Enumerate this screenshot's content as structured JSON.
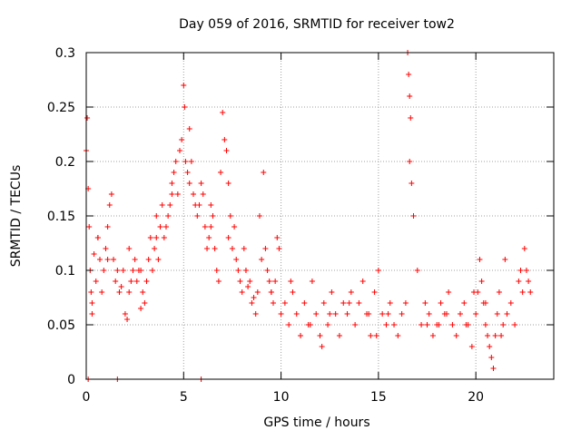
{
  "chart_data": {
    "type": "scatter",
    "title": "Day 059 of 2016, SRMTID for receiver tow2",
    "xlabel": "GPS time / hours",
    "ylabel": "SRMTID / TECUs",
    "xlim": [
      0,
      24
    ],
    "ylim": [
      0,
      0.3
    ],
    "xticks": [
      0,
      5,
      10,
      15,
      20
    ],
    "xtick_labels": [
      "0",
      "5",
      "10",
      "15",
      "20"
    ],
    "yticks": [
      0,
      0.05,
      0.1,
      0.15,
      0.2,
      0.25,
      0.3
    ],
    "ytick_labels": [
      "0",
      "0.05",
      "0.1",
      "0.15",
      "0.2",
      "0.25",
      "0.3"
    ],
    "grid": true,
    "marker": "plus",
    "color": "#ff0000",
    "series": [
      {
        "name": "SRMTID",
        "x": [
          0.0,
          0.05,
          0.1,
          0.15,
          0.2,
          0.25,
          0.3,
          0.4,
          0.5,
          0.6,
          0.7,
          0.8,
          0.9,
          1.0,
          1.1,
          1.2,
          1.3,
          1.4,
          1.5,
          1.6,
          1.7,
          1.8,
          1.9,
          2.0,
          2.1,
          2.2,
          2.3,
          2.4,
          2.5,
          2.6,
          2.7,
          2.8,
          2.9,
          3.0,
          3.1,
          3.2,
          3.3,
          3.4,
          3.5,
          3.6,
          3.7,
          3.8,
          3.9,
          4.0,
          4.1,
          4.2,
          4.3,
          4.4,
          4.5,
          4.6,
          4.7,
          4.8,
          4.9,
          5.0,
          5.05,
          5.1,
          5.2,
          5.3,
          5.4,
          5.5,
          5.6,
          5.7,
          5.8,
          5.9,
          6.0,
          6.1,
          6.2,
          6.3,
          6.4,
          6.5,
          6.6,
          6.7,
          6.8,
          6.9,
          7.0,
          7.1,
          7.2,
          7.3,
          7.4,
          7.5,
          7.6,
          7.7,
          7.8,
          7.9,
          8.0,
          8.1,
          8.2,
          8.3,
          8.4,
          8.5,
          8.6,
          8.7,
          8.8,
          8.9,
          9.0,
          9.1,
          9.2,
          9.3,
          9.4,
          9.5,
          9.6,
          9.7,
          9.8,
          9.9,
          10.0,
          10.2,
          10.4,
          10.6,
          10.8,
          11.0,
          11.2,
          11.4,
          11.6,
          11.8,
          12.0,
          12.2,
          12.4,
          12.6,
          12.8,
          13.0,
          13.2,
          13.4,
          13.6,
          13.8,
          14.0,
          14.2,
          14.4,
          14.6,
          14.8,
          15.0,
          15.2,
          15.4,
          15.6,
          15.8,
          16.0,
          16.2,
          16.4,
          16.5,
          16.55,
          16.6,
          16.65,
          16.7,
          16.8,
          17.0,
          17.2,
          17.4,
          17.6,
          17.8,
          18.0,
          18.2,
          18.4,
          18.6,
          18.8,
          19.0,
          19.2,
          19.4,
          19.6,
          19.8,
          20.0,
          20.1,
          20.2,
          20.3,
          20.4,
          20.5,
          20.6,
          20.7,
          20.8,
          20.9,
          21.0,
          21.1,
          21.2,
          21.4,
          21.6,
          21.8,
          22.0,
          22.2,
          22.4,
          22.5,
          22.6,
          22.7,
          22.8,
          0.1,
          1.6,
          5.9,
          0.3,
          0.6,
          1.1,
          2.2,
          2.8,
          3.6,
          4.4,
          5.3,
          6.4,
          7.3,
          8.2,
          9.5,
          10.5,
          11.5,
          12.5,
          13.5,
          14.5,
          15.5,
          16.6,
          17.5,
          18.5,
          19.5,
          20.5,
          21.5,
          22.3,
          12.1,
          14.9,
          18.1,
          19.9,
          21.3
        ],
        "y": [
          0.21,
          0.24,
          0.175,
          0.14,
          0.1,
          0.08,
          0.06,
          0.115,
          0.09,
          0.13,
          0.11,
          0.08,
          0.1,
          0.12,
          0.14,
          0.16,
          0.17,
          0.11,
          0.09,
          0.1,
          0.08,
          0.085,
          0.1,
          0.06,
          0.055,
          0.08,
          0.09,
          0.1,
          0.11,
          0.09,
          0.1,
          0.1,
          0.08,
          0.07,
          0.09,
          0.11,
          0.13,
          0.1,
          0.12,
          0.13,
          0.11,
          0.14,
          0.16,
          0.13,
          0.14,
          0.15,
          0.16,
          0.18,
          0.19,
          0.2,
          0.17,
          0.21,
          0.22,
          0.27,
          0.25,
          0.2,
          0.19,
          0.18,
          0.2,
          0.17,
          0.16,
          0.15,
          0.16,
          0.18,
          0.17,
          0.14,
          0.12,
          0.13,
          0.16,
          0.15,
          0.12,
          0.1,
          0.09,
          0.19,
          0.245,
          0.22,
          0.21,
          0.18,
          0.15,
          0.12,
          0.14,
          0.11,
          0.1,
          0.09,
          0.08,
          0.12,
          0.1,
          0.085,
          0.09,
          0.07,
          0.075,
          0.06,
          0.08,
          0.15,
          0.11,
          0.19,
          0.12,
          0.1,
          0.09,
          0.08,
          0.07,
          0.09,
          0.13,
          0.12,
          0.06,
          0.07,
          0.05,
          0.08,
          0.06,
          0.04,
          0.07,
          0.05,
          0.09,
          0.06,
          0.04,
          0.07,
          0.05,
          0.08,
          0.06,
          0.04,
          0.07,
          0.06,
          0.08,
          0.05,
          0.07,
          0.09,
          0.06,
          0.04,
          0.08,
          0.1,
          0.06,
          0.05,
          0.07,
          0.05,
          0.04,
          0.06,
          0.07,
          0.3,
          0.28,
          0.26,
          0.24,
          0.18,
          0.15,
          0.1,
          0.05,
          0.07,
          0.06,
          0.04,
          0.05,
          0.07,
          0.06,
          0.08,
          0.05,
          0.04,
          0.06,
          0.07,
          0.05,
          0.03,
          0.06,
          0.08,
          0.11,
          0.09,
          0.07,
          0.05,
          0.04,
          0.03,
          0.02,
          0.01,
          0.04,
          0.06,
          0.08,
          0.05,
          0.06,
          0.07,
          0.05,
          0.09,
          0.08,
          0.12,
          0.1,
          0.09,
          0.08,
          0.0,
          0.0,
          0.0,
          0.07,
          0.13,
          0.11,
          0.12,
          0.065,
          0.15,
          0.17,
          0.23,
          0.14,
          0.13,
          0.1,
          0.08,
          0.09,
          0.05,
          0.06,
          0.07,
          0.06,
          0.06,
          0.2,
          0.05,
          0.06,
          0.05,
          0.07,
          0.11,
          0.1,
          0.03,
          0.04,
          0.05,
          0.08,
          0.04
        ]
      }
    ]
  }
}
